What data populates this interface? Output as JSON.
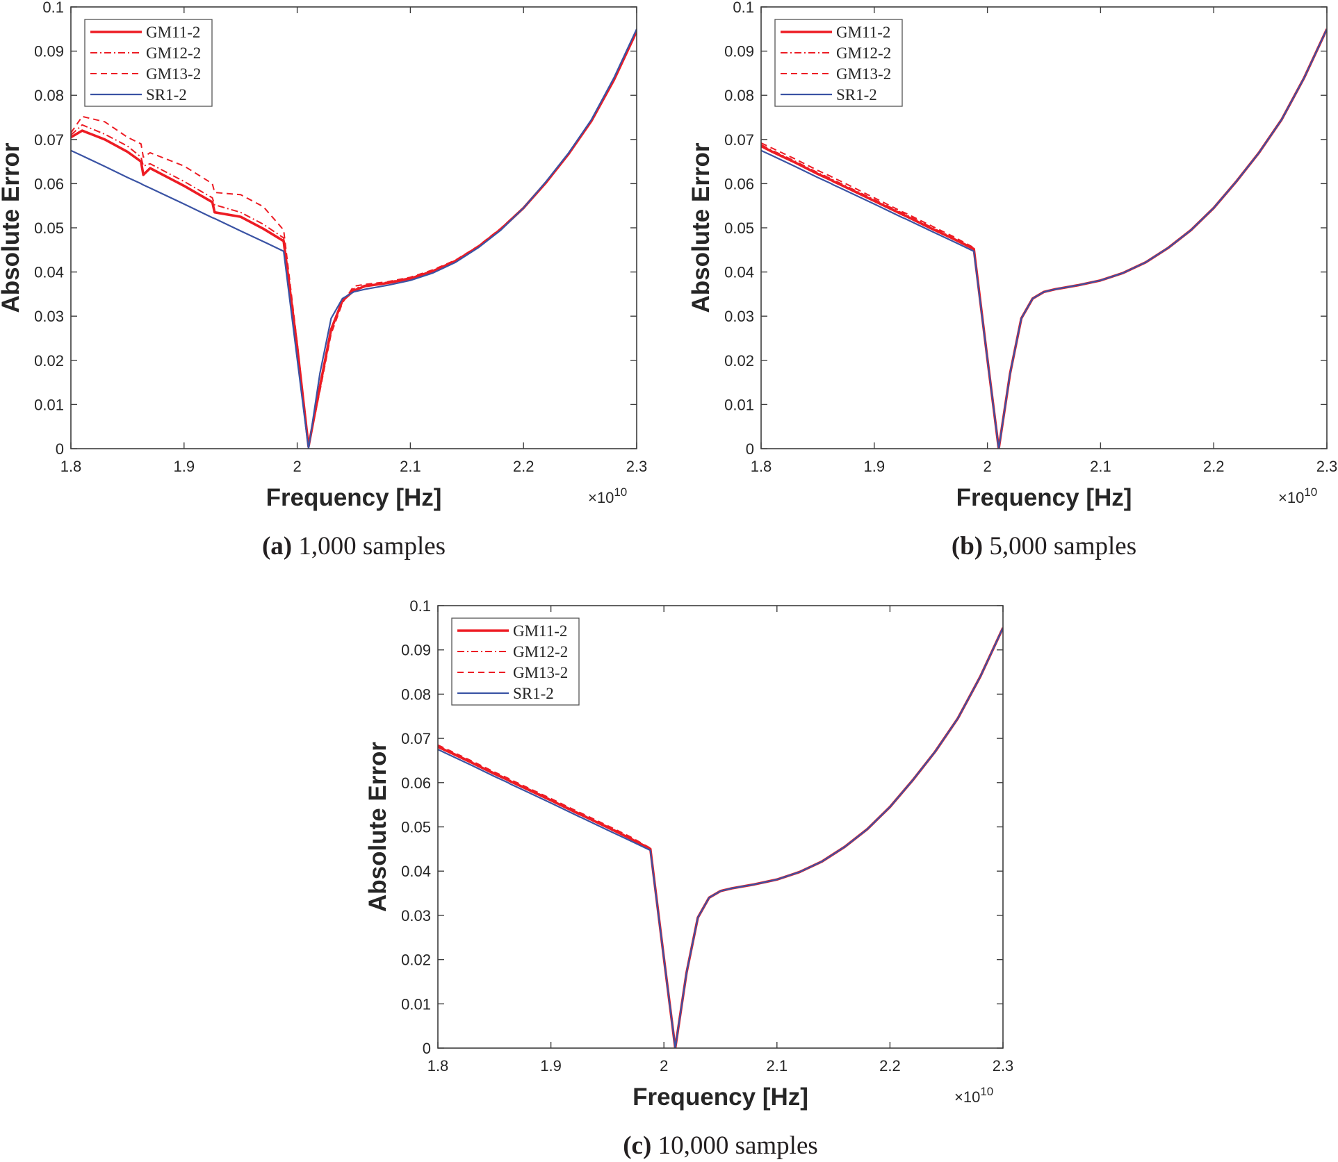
{
  "colors": {
    "gm": "#ed1c24",
    "sr": "#3a53a4",
    "axis": "#3c3c3c"
  },
  "chart_data": [
    {
      "type": "line",
      "caption_label": "(a)",
      "caption_text": " 1,000 samples",
      "xlabel": "Frequency [Hz]",
      "ylabel": "Absolute Error",
      "x_exponent": "×10",
      "x_exponent_power": "10",
      "xlim": [
        1.8,
        2.3
      ],
      "ylim": [
        0,
        0.1
      ],
      "xticks": [
        "1.8",
        "1.9",
        "2",
        "2.1",
        "2.2",
        "2.3"
      ],
      "yticks": [
        "0",
        "0.01",
        "0.02",
        "0.03",
        "0.04",
        "0.05",
        "0.06",
        "0.07",
        "0.08",
        "0.09",
        "0.1"
      ],
      "legend": "top-left",
      "grid": false,
      "x": [
        1.8,
        1.81,
        1.83,
        1.85,
        1.862,
        1.864,
        1.87,
        1.9,
        1.925,
        1.927,
        1.95,
        1.97,
        1.988,
        2.0,
        2.01,
        2.02,
        2.03,
        2.04,
        2.05,
        2.06,
        2.08,
        2.1,
        2.12,
        2.14,
        2.16,
        2.18,
        2.2,
        2.22,
        2.24,
        2.26,
        2.28,
        2.3
      ],
      "series": [
        {
          "name": "GM11-2",
          "style": "solid-thick",
          "values": [
            0.0705,
            0.072,
            0.07,
            0.0672,
            0.065,
            0.062,
            0.0635,
            0.0595,
            0.0558,
            0.0535,
            0.0525,
            0.0498,
            0.047,
            0.023,
            0.0005,
            0.014,
            0.027,
            0.0335,
            0.0358,
            0.0368,
            0.0375,
            0.0385,
            0.0402,
            0.0425,
            0.0457,
            0.0497,
            0.0545,
            0.0603,
            0.0668,
            0.0742,
            0.0835,
            0.0945
          ]
        },
        {
          "name": "GM12-2",
          "style": "dash-dot",
          "values": [
            0.071,
            0.0733,
            0.0712,
            0.0685,
            0.066,
            0.064,
            0.0645,
            0.0605,
            0.0568,
            0.0552,
            0.0535,
            0.0508,
            0.0477,
            0.0235,
            0.0005,
            0.014,
            0.027,
            0.0335,
            0.0362,
            0.037,
            0.0377,
            0.0387,
            0.0403,
            0.0426,
            0.0458,
            0.0498,
            0.0546,
            0.0603,
            0.0668,
            0.0742,
            0.0835,
            0.0945
          ]
        },
        {
          "name": "GM13-2",
          "style": "dashed",
          "values": [
            0.0715,
            0.0752,
            0.074,
            0.0705,
            0.069,
            0.066,
            0.067,
            0.064,
            0.06,
            0.058,
            0.0575,
            0.0548,
            0.0495,
            0.024,
            0.0005,
            0.013,
            0.026,
            0.033,
            0.0368,
            0.0372,
            0.0378,
            0.0388,
            0.0405,
            0.0427,
            0.0459,
            0.0499,
            0.0546,
            0.0604,
            0.0669,
            0.0742,
            0.0835,
            0.0945
          ]
        },
        {
          "name": "SR1-2",
          "style": "solid-blue",
          "values": [
            0.0675,
            0.0663,
            0.0639,
            0.0614,
            0.06,
            0.0597,
            0.059,
            0.0554,
            0.0523,
            0.0521,
            0.0493,
            0.0469,
            0.0447,
            0.0203,
            0.0,
            0.017,
            0.0295,
            0.034,
            0.0355,
            0.0361,
            0.037,
            0.0381,
            0.0398,
            0.0422,
            0.0455,
            0.0495,
            0.0545,
            0.0605,
            0.067,
            0.0745,
            0.084,
            0.095
          ]
        }
      ]
    },
    {
      "type": "line",
      "caption_label": "(b)",
      "caption_text": " 5,000 samples",
      "xlabel": "Frequency [Hz]",
      "ylabel": "Absolute Error",
      "x_exponent": "×10",
      "x_exponent_power": "10",
      "xlim": [
        1.8,
        2.3
      ],
      "ylim": [
        0,
        0.1
      ],
      "xticks": [
        "1.8",
        "1.9",
        "2",
        "2.1",
        "2.2",
        "2.3"
      ],
      "yticks": [
        "0",
        "0.01",
        "0.02",
        "0.03",
        "0.04",
        "0.05",
        "0.06",
        "0.07",
        "0.08",
        "0.09",
        "0.1"
      ],
      "legend": "top-left",
      "grid": false,
      "x": [
        1.8,
        1.81,
        1.83,
        1.85,
        1.862,
        1.864,
        1.87,
        1.9,
        1.925,
        1.927,
        1.95,
        1.97,
        1.988,
        2.0,
        2.01,
        2.02,
        2.03,
        2.04,
        2.05,
        2.06,
        2.08,
        2.1,
        2.12,
        2.14,
        2.16,
        2.18,
        2.2,
        2.22,
        2.24,
        2.26,
        2.28,
        2.3
      ],
      "series": [
        {
          "name": "GM11-2",
          "style": "solid-thick",
          "values": [
            0.0685,
            0.0672,
            0.0648,
            0.0622,
            0.0608,
            0.0605,
            0.0598,
            0.0561,
            0.053,
            0.0528,
            0.0499,
            0.0475,
            0.0452,
            0.0203,
            0.0,
            0.017,
            0.0295,
            0.034,
            0.0355,
            0.0361,
            0.037,
            0.0381,
            0.0398,
            0.0422,
            0.0455,
            0.0495,
            0.0545,
            0.0605,
            0.067,
            0.0745,
            0.084,
            0.095
          ]
        },
        {
          "name": "GM12-2",
          "style": "dash-dot",
          "values": [
            0.0688,
            0.0675,
            0.0651,
            0.0625,
            0.0611,
            0.0608,
            0.0601,
            0.0564,
            0.0533,
            0.0531,
            0.0502,
            0.0477,
            0.0453,
            0.0203,
            0.0,
            0.017,
            0.0295,
            0.034,
            0.0355,
            0.0361,
            0.037,
            0.0381,
            0.0398,
            0.0422,
            0.0455,
            0.0495,
            0.0545,
            0.0605,
            0.067,
            0.0745,
            0.084,
            0.095
          ]
        },
        {
          "name": "GM13-2",
          "style": "dashed",
          "values": [
            0.0692,
            0.068,
            0.0656,
            0.063,
            0.0616,
            0.0613,
            0.0606,
            0.0568,
            0.0536,
            0.0534,
            0.0505,
            0.048,
            0.0455,
            0.0203,
            0.0,
            0.017,
            0.0295,
            0.034,
            0.0355,
            0.0361,
            0.037,
            0.0381,
            0.0398,
            0.0422,
            0.0455,
            0.0495,
            0.0545,
            0.0605,
            0.067,
            0.0745,
            0.084,
            0.095
          ]
        },
        {
          "name": "SR1-2",
          "style": "solid-blue",
          "values": [
            0.0675,
            0.0663,
            0.0639,
            0.0614,
            0.06,
            0.0597,
            0.059,
            0.0554,
            0.0523,
            0.0521,
            0.0493,
            0.0469,
            0.0447,
            0.0203,
            0.0,
            0.017,
            0.0295,
            0.034,
            0.0355,
            0.0361,
            0.037,
            0.0381,
            0.0398,
            0.0422,
            0.0455,
            0.0495,
            0.0545,
            0.0605,
            0.067,
            0.0745,
            0.084,
            0.095
          ]
        }
      ]
    },
    {
      "type": "line",
      "caption_label": "(c)",
      "caption_text": " 10,000 samples",
      "xlabel": "Frequency [Hz]",
      "ylabel": "Absolute Error",
      "x_exponent": "×10",
      "x_exponent_power": "10",
      "xlim": [
        1.8,
        2.3
      ],
      "ylim": [
        0,
        0.1
      ],
      "xticks": [
        "1.8",
        "1.9",
        "2",
        "2.1",
        "2.2",
        "2.3"
      ],
      "yticks": [
        "0",
        "0.01",
        "0.02",
        "0.03",
        "0.04",
        "0.05",
        "0.06",
        "0.07",
        "0.08",
        "0.09",
        "0.1"
      ],
      "legend": "top-left",
      "grid": false,
      "x": [
        1.8,
        1.81,
        1.83,
        1.85,
        1.862,
        1.864,
        1.87,
        1.9,
        1.925,
        1.927,
        1.95,
        1.97,
        1.988,
        2.0,
        2.01,
        2.02,
        2.03,
        2.04,
        2.05,
        2.06,
        2.08,
        2.1,
        2.12,
        2.14,
        2.16,
        2.18,
        2.2,
        2.22,
        2.24,
        2.26,
        2.28,
        2.3
      ],
      "series": [
        {
          "name": "GM11-2",
          "style": "solid-thick",
          "values": [
            0.0681,
            0.0669,
            0.0645,
            0.062,
            0.0606,
            0.0603,
            0.0596,
            0.056,
            0.0529,
            0.0527,
            0.0499,
            0.0474,
            0.045,
            0.0203,
            0.0,
            0.017,
            0.0295,
            0.034,
            0.0355,
            0.0361,
            0.037,
            0.0381,
            0.0398,
            0.0422,
            0.0455,
            0.0495,
            0.0545,
            0.0605,
            0.067,
            0.0745,
            0.084,
            0.095
          ]
        },
        {
          "name": "GM12-2",
          "style": "dash-dot",
          "values": [
            0.0683,
            0.0671,
            0.0647,
            0.0622,
            0.0608,
            0.0605,
            0.0598,
            0.0562,
            0.0531,
            0.0529,
            0.0501,
            0.0476,
            0.0451,
            0.0203,
            0.0,
            0.017,
            0.0295,
            0.034,
            0.0355,
            0.0361,
            0.037,
            0.0381,
            0.0398,
            0.0422,
            0.0455,
            0.0495,
            0.0545,
            0.0605,
            0.067,
            0.0745,
            0.084,
            0.095
          ]
        },
        {
          "name": "GM13-2",
          "style": "dashed",
          "values": [
            0.0685,
            0.0673,
            0.0649,
            0.0624,
            0.061,
            0.0607,
            0.06,
            0.0564,
            0.0533,
            0.0531,
            0.0503,
            0.0478,
            0.0452,
            0.0203,
            0.0,
            0.017,
            0.0295,
            0.034,
            0.0355,
            0.0361,
            0.037,
            0.0381,
            0.0398,
            0.0422,
            0.0455,
            0.0495,
            0.0545,
            0.0605,
            0.067,
            0.0745,
            0.084,
            0.095
          ]
        },
        {
          "name": "SR1-2",
          "style": "solid-blue",
          "values": [
            0.0675,
            0.0663,
            0.0639,
            0.0614,
            0.06,
            0.0597,
            0.059,
            0.0554,
            0.0523,
            0.0521,
            0.0493,
            0.0469,
            0.0447,
            0.0203,
            0.0,
            0.017,
            0.0295,
            0.034,
            0.0355,
            0.0361,
            0.037,
            0.0381,
            0.0398,
            0.0422,
            0.0455,
            0.0495,
            0.0545,
            0.0605,
            0.067,
            0.0745,
            0.084,
            0.095
          ]
        }
      ]
    }
  ]
}
